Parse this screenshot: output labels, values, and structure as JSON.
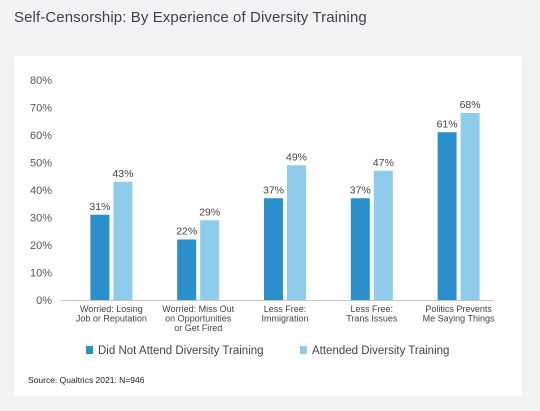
{
  "title": "Self-Censorship: By Experience of Diversity Training",
  "source": "Source: Qualtrics 2021: N=946",
  "colors": {
    "series1": "#2a8fcb",
    "series2": "#8fcbea"
  },
  "chart_data": {
    "type": "bar",
    "categories": [
      [
        "Worried: Losing",
        "Job or Reputation"
      ],
      [
        "Worried: Miss Out",
        "on Opportunities",
        "or Get Fired"
      ],
      [
        "Less Free:",
        "Immigration"
      ],
      [
        "Less Free:",
        "Trans Issues"
      ],
      [
        "Politics Prevents",
        "Me Saying Things"
      ]
    ],
    "series": [
      {
        "name": "Did Not Attend Diversity Training",
        "values": [
          31,
          22,
          37,
          37,
          61
        ],
        "labels": [
          "31%",
          "22%",
          "37%",
          "37%",
          "61%"
        ]
      },
      {
        "name": "Attended Diversity Training",
        "values": [
          43,
          29,
          49,
          47,
          68
        ],
        "labels": [
          "43%",
          "29%",
          "49%",
          "47%",
          "68%"
        ]
      }
    ],
    "ylim": [
      0,
      80
    ],
    "yticks": [
      "0%",
      "10%",
      "20%",
      "30%",
      "40%",
      "50%",
      "60%",
      "70%",
      "80%"
    ],
    "legend": "bottom"
  }
}
